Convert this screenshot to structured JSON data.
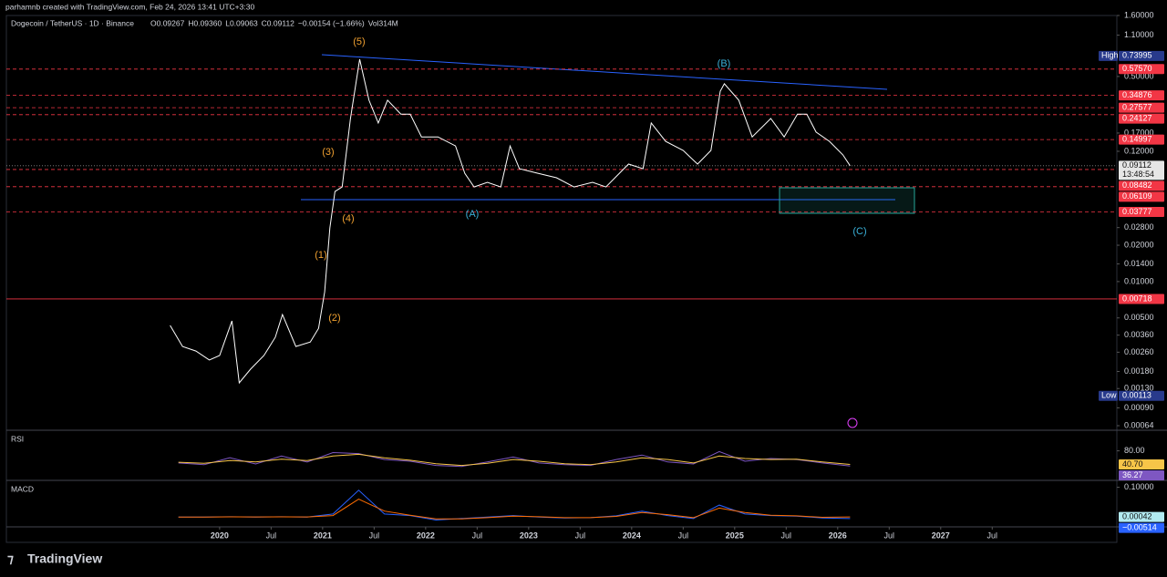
{
  "header": {
    "credit": "parhamnb created with TradingView.com, Feb 24, 2026 13:41 UTC+3:30"
  },
  "footer": {
    "brand": "TradingView"
  },
  "chart_data": [
    {
      "type": "line",
      "title": "Dogecoin / TetherUS · 1D · Binance",
      "ohlc": [
        "O0.09267",
        "H0.09360",
        "L0.09063",
        "C0.09112",
        "−0.00154 (−1.66%)",
        "Vol314M"
      ],
      "log_scale": true,
      "color": "#ffffff",
      "xlim": [
        2017.93,
        2028.71
      ],
      "ylim": [
        0.00064,
        1.6
      ],
      "xticks": [
        2020,
        {
          "value": 2020.5,
          "label": "Jul"
        },
        2021,
        {
          "value": 2021.5,
          "label": "Jul"
        },
        2022,
        {
          "value": 2022.5,
          "label": "Jul"
        },
        2023,
        {
          "value": 2023.5,
          "label": "Jul"
        },
        2024,
        {
          "value": 2024.5,
          "label": "Jul"
        },
        2025,
        {
          "value": 2025.5,
          "label": "Jul"
        },
        2026,
        {
          "value": 2026.5,
          "label": "Jul"
        },
        2027,
        {
          "value": 2027.5,
          "label": "Jul"
        }
      ],
      "yticks": [
        {
          "value": 1.6,
          "label": "1.60000"
        },
        {
          "value": 1.1,
          "label": "1.10000"
        },
        {
          "value": 0.5,
          "label": "0.50000"
        },
        {
          "value": 0.17,
          "label": "0.17000"
        },
        {
          "value": 0.12,
          "label": "0.12000"
        },
        {
          "value": 0.028,
          "label": "0.02800"
        },
        {
          "value": 0.02,
          "label": "0.02000"
        },
        {
          "value": 0.014,
          "label": "0.01400"
        },
        {
          "value": 0.01,
          "label": "0.01000"
        },
        {
          "value": 0.005,
          "label": "0.00500"
        },
        {
          "value": 0.0036,
          "label": "0.00360"
        },
        {
          "value": 0.0026,
          "label": "0.00260"
        },
        {
          "value": 0.0018,
          "label": "0.00180"
        },
        {
          "value": 0.0013,
          "label": "0.00130"
        },
        {
          "value": 0.0009,
          "label": "0.00090"
        },
        {
          "value": 0.00064,
          "label": "0.00064"
        }
      ],
      "x": [
        2019.52,
        2019.64,
        2019.77,
        2019.9,
        2020.0,
        2020.12,
        2020.19,
        2020.3,
        2020.43,
        2020.54,
        2020.61,
        2020.74,
        2020.88,
        2020.96,
        2021.02,
        2021.07,
        2021.12,
        2021.19,
        2021.27,
        2021.36,
        2021.45,
        2021.54,
        2021.63,
        2021.76,
        2021.85,
        2021.96,
        2022.12,
        2022.29,
        2022.38,
        2022.47,
        2022.6,
        2022.73,
        2022.82,
        2022.91,
        2023.09,
        2023.27,
        2023.44,
        2023.62,
        2023.75,
        2023.97,
        2024.11,
        2024.19,
        2024.33,
        2024.5,
        2024.64,
        2024.77,
        2024.86,
        2024.9,
        2025.04,
        2025.17,
        2025.35,
        2025.48,
        2025.61,
        2025.7,
        2025.79,
        2025.92,
        2026.05,
        2026.12
      ],
      "values": [
        0.00433,
        0.0029,
        0.00266,
        0.00224,
        0.00244,
        0.00472,
        0.00145,
        0.00188,
        0.00244,
        0.00345,
        0.00533,
        0.0029,
        0.00316,
        0.0041,
        0.00822,
        0.0278,
        0.0557,
        0.0608,
        0.2245,
        0.694,
        0.318,
        0.206,
        0.318,
        0.244,
        0.244,
        0.158,
        0.158,
        0.133,
        0.0789,
        0.0608,
        0.0664,
        0.0608,
        0.133,
        0.0861,
        0.0789,
        0.0725,
        0.0608,
        0.0664,
        0.0608,
        0.094,
        0.0861,
        0.206,
        0.145,
        0.122,
        0.094,
        0.122,
        0.378,
        0.435,
        0.318,
        0.158,
        0.2245,
        0.158,
        0.244,
        0.244,
        0.173,
        0.145,
        0.112,
        0.0911
      ],
      "levels": [
        {
          "value": 0.73995,
          "label": "0.73995",
          "tag": "High",
          "color": "#283a8c",
          "style": "none"
        },
        {
          "value": 0.5757,
          "label": "0.57570",
          "color": "#f23645",
          "style": "dashed"
        },
        {
          "value": 0.34876,
          "label": "0.34876",
          "color": "#f23645",
          "style": "dashed"
        },
        {
          "value": 0.27577,
          "label": "0.27577",
          "color": "#f23645",
          "style": "dashed"
        },
        {
          "value": 0.24127,
          "label": "0.24127",
          "color": "#f23645",
          "style": "dashed"
        },
        {
          "value": 0.14997,
          "label": "0.14997",
          "color": "#f23645",
          "style": "dashed"
        },
        {
          "value": 0.09112,
          "label": "0.09112",
          "countdown": "13:48:54",
          "color": "#e6e6e6",
          "style": "dotted"
        },
        {
          "value": 0.08482,
          "label": "0.08482",
          "color": "#f23645",
          "style": "dashed"
        },
        {
          "value": 0.06109,
          "label": "0.06109",
          "color": "#f23645",
          "style": "dashed"
        },
        {
          "value": 0.03777,
          "label": "0.03777",
          "color": "#f23645",
          "style": "dashed"
        },
        {
          "value": 0.00718,
          "label": "0.00718",
          "color": "#f23645",
          "style": "solid"
        },
        {
          "value": 0.00113,
          "label": "0.00113",
          "tag": "Low",
          "color": "#283a8c",
          "style": "none"
        }
      ],
      "annotations": [
        {
          "text": "(5)",
          "color": "#f0a030"
        },
        {
          "text": "(3)",
          "color": "#f0a030"
        },
        {
          "text": "(4)",
          "color": "#f0a030"
        },
        {
          "text": "(1)",
          "color": "#f0a030"
        },
        {
          "text": "(2)",
          "color": "#f0a030"
        },
        {
          "text": "(A)",
          "color": "#3ab0d8"
        },
        {
          "text": "(B)",
          "color": "#3ab0d8"
        },
        {
          "text": "(C)",
          "color": "#3ab0d8"
        }
      ]
    },
    {
      "type": "line",
      "title": "RSI",
      "xlim": [
        2017.93,
        2028.71
      ],
      "ylim": [
        0,
        100
      ],
      "yticks": [
        {
          "value": 80,
          "label": "80.00"
        }
      ],
      "x": [
        2019.6,
        2019.85,
        2020.1,
        2020.35,
        2020.6,
        2020.85,
        2021.1,
        2021.35,
        2021.6,
        2021.85,
        2022.1,
        2022.35,
        2022.6,
        2022.85,
        2023.1,
        2023.35,
        2023.6,
        2023.85,
        2024.1,
        2024.35,
        2024.6,
        2024.85,
        2025.1,
        2025.35,
        2025.6,
        2025.85,
        2026.12
      ],
      "series": [
        {
          "color": "#7e57c2",
          "values": [
            45,
            40,
            60,
            42,
            65,
            48,
            75,
            72,
            55,
            50,
            38,
            35,
            48,
            62,
            45,
            40,
            38,
            55,
            68,
            48,
            42,
            78,
            50,
            58,
            55,
            45,
            36.27
          ]
        },
        {
          "color": "#f7c548",
          "values": [
            47,
            44,
            52,
            48,
            56,
            52,
            65,
            70,
            60,
            53,
            43,
            38,
            44,
            55,
            50,
            43,
            40,
            48,
            60,
            55,
            45,
            65,
            58,
            55,
            56,
            48,
            40.7
          ]
        }
      ],
      "levels": [
        {
          "value": 40.7,
          "label": "40.70",
          "color": "#f7c548",
          "style": "none"
        },
        {
          "value": 36.27,
          "label": "36.27",
          "color": "#7e57c2",
          "style": "none"
        }
      ]
    },
    {
      "type": "line",
      "title": "MACD",
      "xlim": [
        2017.93,
        2028.71
      ],
      "ylim": [
        -0.03,
        0.12
      ],
      "yticks": [
        {
          "value": 0.1,
          "label": "0.10000"
        }
      ],
      "x": [
        2019.6,
        2019.85,
        2020.1,
        2020.35,
        2020.6,
        2020.85,
        2021.1,
        2021.35,
        2021.6,
        2021.85,
        2022.1,
        2022.35,
        2022.6,
        2022.85,
        2023.1,
        2023.35,
        2023.6,
        2023.85,
        2024.1,
        2024.35,
        2024.6,
        2024.85,
        2025.1,
        2025.35,
        2025.6,
        2025.85,
        2026.12
      ],
      "series": [
        {
          "color": "#2962ff",
          "values": [
            0,
            0,
            0.001,
            0,
            0.001,
            0,
            0.01,
            0.09,
            0.01,
            0.005,
            -0.01,
            -0.005,
            0,
            0.005,
            0,
            -0.003,
            -0.002,
            0.004,
            0.02,
            0.005,
            -0.005,
            0.04,
            0.01,
            0.005,
            0.003,
            -0.003,
            -0.00514
          ]
        },
        {
          "color": "#ff6d00",
          "values": [
            0,
            0,
            0.0005,
            0.0003,
            0.0007,
            0.0003,
            0.005,
            0.06,
            0.02,
            0.006,
            -0.006,
            -0.006,
            -0.002,
            0.003,
            0.001,
            -0.002,
            -0.002,
            0.002,
            0.015,
            0.008,
            -0.002,
            0.03,
            0.015,
            0.006,
            0.004,
            -0.001,
            0.00042
          ]
        }
      ],
      "levels": [
        {
          "value": 0.00042,
          "label": "0.00042",
          "color": "#b2ebf2",
          "style": "none"
        },
        {
          "value": -0.00514,
          "label": "−0.00514",
          "color": "#2962ff",
          "style": "none"
        }
      ]
    }
  ]
}
